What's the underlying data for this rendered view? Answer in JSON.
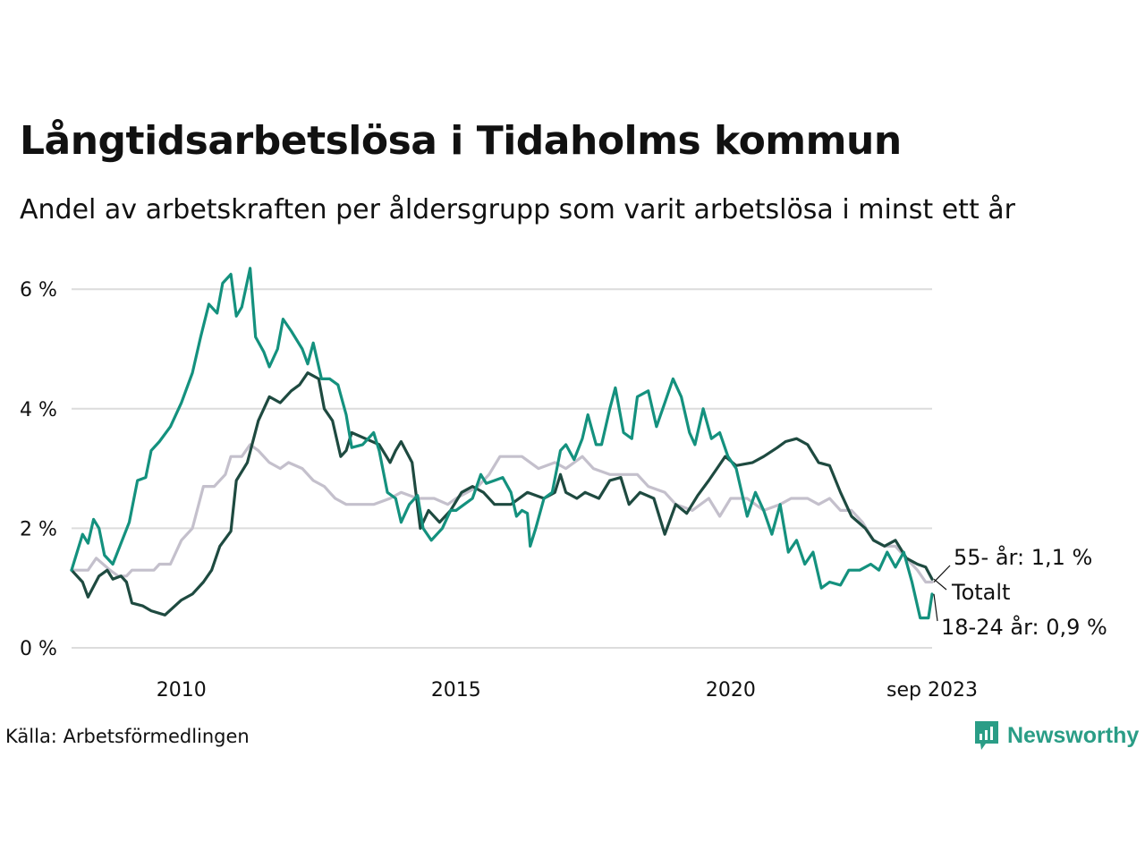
{
  "title": "Långtidsarbetslösa i Tidaholms kommun",
  "subtitle": "Andel av arbetskraften per åldersgrupp som varit arbetslösa i minst ett år",
  "source": "Källa: Arbetsförmedlingen",
  "brand": "Newsworthy",
  "colors": {
    "youth": "#14917e",
    "total": "#1e4a40",
    "senior": "#c4c0cc",
    "grid": "#dcdcdc",
    "brand": "#2a9d86"
  },
  "chart_data": {
    "type": "line",
    "x_start": 2008.0,
    "x_end": 2023.667,
    "step": 0.0833,
    "ylim": [
      0,
      6.5
    ],
    "yticks": [
      0,
      2,
      4,
      6
    ],
    "ytick_labels": [
      "0 %",
      "2 %",
      "4 %",
      "6 %"
    ],
    "xticks": [
      2010,
      2015,
      2020,
      2023.667
    ],
    "xtick_labels": [
      "2010",
      "2015",
      "2020",
      "sep 2023"
    ],
    "series": [
      {
        "name": "55- år",
        "end_label": "55- år: 1,1 %",
        "color": "#c4c0cc",
        "knots": [
          [
            2008.0,
            1.3
          ],
          [
            2008.3,
            1.3
          ],
          [
            2008.45,
            1.5
          ],
          [
            2008.7,
            1.3
          ],
          [
            2008.85,
            1.2
          ],
          [
            2009.0,
            1.2
          ],
          [
            2009.1,
            1.3
          ],
          [
            2009.5,
            1.3
          ],
          [
            2009.6,
            1.4
          ],
          [
            2009.8,
            1.4
          ],
          [
            2010.0,
            1.8
          ],
          [
            2010.2,
            2.0
          ],
          [
            2010.4,
            2.7
          ],
          [
            2010.6,
            2.7
          ],
          [
            2010.8,
            2.9
          ],
          [
            2010.9,
            3.2
          ],
          [
            2011.1,
            3.2
          ],
          [
            2011.25,
            3.4
          ],
          [
            2011.4,
            3.3
          ],
          [
            2011.6,
            3.1
          ],
          [
            2011.8,
            3.0
          ],
          [
            2011.95,
            3.1
          ],
          [
            2012.2,
            3.0
          ],
          [
            2012.4,
            2.8
          ],
          [
            2012.6,
            2.7
          ],
          [
            2012.8,
            2.5
          ],
          [
            2013.0,
            2.4
          ],
          [
            2013.5,
            2.4
          ],
          [
            2013.8,
            2.5
          ],
          [
            2014.0,
            2.6
          ],
          [
            2014.3,
            2.5
          ],
          [
            2014.6,
            2.5
          ],
          [
            2014.85,
            2.4
          ],
          [
            2015.0,
            2.5
          ],
          [
            2015.2,
            2.6
          ],
          [
            2015.4,
            2.7
          ],
          [
            2015.6,
            2.9
          ],
          [
            2015.8,
            3.2
          ],
          [
            2016.2,
            3.2
          ],
          [
            2016.5,
            3.0
          ],
          [
            2016.8,
            3.1
          ],
          [
            2017.0,
            3.0
          ],
          [
            2017.3,
            3.2
          ],
          [
            2017.5,
            3.0
          ],
          [
            2017.8,
            2.9
          ],
          [
            2018.0,
            2.9
          ],
          [
            2018.3,
            2.9
          ],
          [
            2018.5,
            2.7
          ],
          [
            2018.8,
            2.6
          ],
          [
            2019.0,
            2.4
          ],
          [
            2019.3,
            2.3
          ],
          [
            2019.6,
            2.5
          ],
          [
            2019.8,
            2.2
          ],
          [
            2020.0,
            2.5
          ],
          [
            2020.3,
            2.5
          ],
          [
            2020.6,
            2.3
          ],
          [
            2020.9,
            2.4
          ],
          [
            2021.1,
            2.5
          ],
          [
            2021.4,
            2.5
          ],
          [
            2021.6,
            2.4
          ],
          [
            2021.8,
            2.5
          ],
          [
            2022.0,
            2.3
          ],
          [
            2022.2,
            2.3
          ],
          [
            2022.4,
            2.1
          ],
          [
            2022.6,
            1.8
          ],
          [
            2022.8,
            1.7
          ],
          [
            2023.0,
            1.7
          ],
          [
            2023.2,
            1.5
          ],
          [
            2023.4,
            1.3
          ],
          [
            2023.55,
            1.1
          ],
          [
            2023.667,
            1.1
          ]
        ]
      },
      {
        "name": "Totalt",
        "end_label": "Totalt",
        "color": "#1e4a40",
        "knots": [
          [
            2008.0,
            1.3
          ],
          [
            2008.2,
            1.1
          ],
          [
            2008.3,
            0.85
          ],
          [
            2008.5,
            1.2
          ],
          [
            2008.65,
            1.3
          ],
          [
            2008.75,
            1.15
          ],
          [
            2008.9,
            1.2
          ],
          [
            2009.0,
            1.1
          ],
          [
            2009.1,
            0.75
          ],
          [
            2009.3,
            0.7
          ],
          [
            2009.45,
            0.62
          ],
          [
            2009.7,
            0.55
          ],
          [
            2010.0,
            0.8
          ],
          [
            2010.2,
            0.9
          ],
          [
            2010.4,
            1.1
          ],
          [
            2010.55,
            1.3
          ],
          [
            2010.7,
            1.7
          ],
          [
            2010.9,
            1.95
          ],
          [
            2011.0,
            2.8
          ],
          [
            2011.2,
            3.1
          ],
          [
            2011.4,
            3.8
          ],
          [
            2011.6,
            4.2
          ],
          [
            2011.8,
            4.1
          ],
          [
            2012.0,
            4.3
          ],
          [
            2012.15,
            4.4
          ],
          [
            2012.3,
            4.6
          ],
          [
            2012.5,
            4.5
          ],
          [
            2012.6,
            4.0
          ],
          [
            2012.75,
            3.8
          ],
          [
            2012.9,
            3.2
          ],
          [
            2013.0,
            3.3
          ],
          [
            2013.1,
            3.6
          ],
          [
            2013.35,
            3.5
          ],
          [
            2013.6,
            3.4
          ],
          [
            2013.8,
            3.1
          ],
          [
            2013.9,
            3.3
          ],
          [
            2014.0,
            3.45
          ],
          [
            2014.2,
            3.1
          ],
          [
            2014.35,
            2.0
          ],
          [
            2014.5,
            2.3
          ],
          [
            2014.7,
            2.1
          ],
          [
            2014.9,
            2.3
          ],
          [
            2015.1,
            2.6
          ],
          [
            2015.3,
            2.7
          ],
          [
            2015.5,
            2.6
          ],
          [
            2015.7,
            2.4
          ],
          [
            2016.0,
            2.4
          ],
          [
            2016.3,
            2.6
          ],
          [
            2016.6,
            2.5
          ],
          [
            2016.8,
            2.6
          ],
          [
            2016.9,
            2.9
          ],
          [
            2017.0,
            2.6
          ],
          [
            2017.2,
            2.5
          ],
          [
            2017.35,
            2.6
          ],
          [
            2017.6,
            2.5
          ],
          [
            2017.8,
            2.8
          ],
          [
            2018.0,
            2.85
          ],
          [
            2018.15,
            2.4
          ],
          [
            2018.35,
            2.6
          ],
          [
            2018.6,
            2.5
          ],
          [
            2018.8,
            1.9
          ],
          [
            2019.0,
            2.4
          ],
          [
            2019.2,
            2.25
          ],
          [
            2019.4,
            2.55
          ],
          [
            2019.6,
            2.8
          ],
          [
            2019.75,
            3.0
          ],
          [
            2019.9,
            3.2
          ],
          [
            2020.1,
            3.05
          ],
          [
            2020.4,
            3.1
          ],
          [
            2020.6,
            3.2
          ],
          [
            2020.85,
            3.35
          ],
          [
            2021.0,
            3.45
          ],
          [
            2021.2,
            3.5
          ],
          [
            2021.4,
            3.4
          ],
          [
            2021.6,
            3.1
          ],
          [
            2021.8,
            3.05
          ],
          [
            2022.0,
            2.6
          ],
          [
            2022.2,
            2.2
          ],
          [
            2022.45,
            2.0
          ],
          [
            2022.6,
            1.8
          ],
          [
            2022.8,
            1.7
          ],
          [
            2023.0,
            1.8
          ],
          [
            2023.2,
            1.5
          ],
          [
            2023.4,
            1.4
          ],
          [
            2023.55,
            1.35
          ],
          [
            2023.667,
            1.15
          ]
        ]
      },
      {
        "name": "18-24 år",
        "end_label": "18-24 år: 0,9 %",
        "color": "#14917e",
        "knots": [
          [
            2008.0,
            1.3
          ],
          [
            2008.2,
            1.9
          ],
          [
            2008.3,
            1.75
          ],
          [
            2008.4,
            2.15
          ],
          [
            2008.5,
            2.0
          ],
          [
            2008.6,
            1.55
          ],
          [
            2008.75,
            1.4
          ],
          [
            2008.9,
            1.75
          ],
          [
            2009.05,
            2.1
          ],
          [
            2009.2,
            2.8
          ],
          [
            2009.35,
            2.85
          ],
          [
            2009.45,
            3.3
          ],
          [
            2009.6,
            3.45
          ],
          [
            2009.8,
            3.7
          ],
          [
            2010.0,
            4.1
          ],
          [
            2010.2,
            4.6
          ],
          [
            2010.35,
            5.2
          ],
          [
            2010.5,
            5.75
          ],
          [
            2010.65,
            5.6
          ],
          [
            2010.75,
            6.1
          ],
          [
            2010.9,
            6.25
          ],
          [
            2011.0,
            5.55
          ],
          [
            2011.1,
            5.7
          ],
          [
            2011.25,
            6.35
          ],
          [
            2011.35,
            5.2
          ],
          [
            2011.5,
            4.95
          ],
          [
            2011.6,
            4.7
          ],
          [
            2011.75,
            5.0
          ],
          [
            2011.85,
            5.5
          ],
          [
            2012.0,
            5.3
          ],
          [
            2012.2,
            5.0
          ],
          [
            2012.3,
            4.75
          ],
          [
            2012.4,
            5.1
          ],
          [
            2012.55,
            4.5
          ],
          [
            2012.7,
            4.5
          ],
          [
            2012.85,
            4.4
          ],
          [
            2013.0,
            3.9
          ],
          [
            2013.1,
            3.35
          ],
          [
            2013.3,
            3.4
          ],
          [
            2013.5,
            3.6
          ],
          [
            2013.6,
            3.3
          ],
          [
            2013.75,
            2.6
          ],
          [
            2013.9,
            2.5
          ],
          [
            2014.0,
            2.1
          ],
          [
            2014.15,
            2.4
          ],
          [
            2014.3,
            2.55
          ],
          [
            2014.4,
            2.0
          ],
          [
            2014.55,
            1.8
          ],
          [
            2014.75,
            2.0
          ],
          [
            2014.9,
            2.3
          ],
          [
            2015.0,
            2.3
          ],
          [
            2015.15,
            2.4
          ],
          [
            2015.3,
            2.5
          ],
          [
            2015.45,
            2.9
          ],
          [
            2015.55,
            2.75
          ],
          [
            2015.7,
            2.8
          ],
          [
            2015.85,
            2.85
          ],
          [
            2016.0,
            2.6
          ],
          [
            2016.1,
            2.2
          ],
          [
            2016.2,
            2.3
          ],
          [
            2016.3,
            2.25
          ],
          [
            2016.35,
            1.7
          ],
          [
            2016.45,
            2.0
          ],
          [
            2016.6,
            2.5
          ],
          [
            2016.75,
            2.6
          ],
          [
            2016.9,
            3.3
          ],
          [
            2017.0,
            3.4
          ],
          [
            2017.15,
            3.15
          ],
          [
            2017.3,
            3.5
          ],
          [
            2017.4,
            3.9
          ],
          [
            2017.55,
            3.4
          ],
          [
            2017.65,
            3.4
          ],
          [
            2017.8,
            4.0
          ],
          [
            2017.9,
            4.35
          ],
          [
            2018.05,
            3.6
          ],
          [
            2018.2,
            3.5
          ],
          [
            2018.3,
            4.2
          ],
          [
            2018.5,
            4.3
          ],
          [
            2018.65,
            3.7
          ],
          [
            2018.8,
            4.1
          ],
          [
            2018.95,
            4.5
          ],
          [
            2019.1,
            4.2
          ],
          [
            2019.25,
            3.6
          ],
          [
            2019.35,
            3.4
          ],
          [
            2019.5,
            4.0
          ],
          [
            2019.65,
            3.5
          ],
          [
            2019.8,
            3.6
          ],
          [
            2019.95,
            3.2
          ],
          [
            2020.1,
            3.0
          ],
          [
            2020.3,
            2.2
          ],
          [
            2020.45,
            2.6
          ],
          [
            2020.6,
            2.3
          ],
          [
            2020.75,
            1.9
          ],
          [
            2020.9,
            2.4
          ],
          [
            2021.05,
            1.6
          ],
          [
            2021.2,
            1.8
          ],
          [
            2021.35,
            1.4
          ],
          [
            2021.5,
            1.6
          ],
          [
            2021.65,
            1.0
          ],
          [
            2021.8,
            1.1
          ],
          [
            2022.0,
            1.05
          ],
          [
            2022.15,
            1.3
          ],
          [
            2022.35,
            1.3
          ],
          [
            2022.55,
            1.4
          ],
          [
            2022.7,
            1.3
          ],
          [
            2022.85,
            1.6
          ],
          [
            2023.0,
            1.35
          ],
          [
            2023.15,
            1.6
          ],
          [
            2023.3,
            1.1
          ],
          [
            2023.45,
            0.5
          ],
          [
            2023.6,
            0.5
          ],
          [
            2023.667,
            0.9
          ]
        ]
      }
    ]
  }
}
